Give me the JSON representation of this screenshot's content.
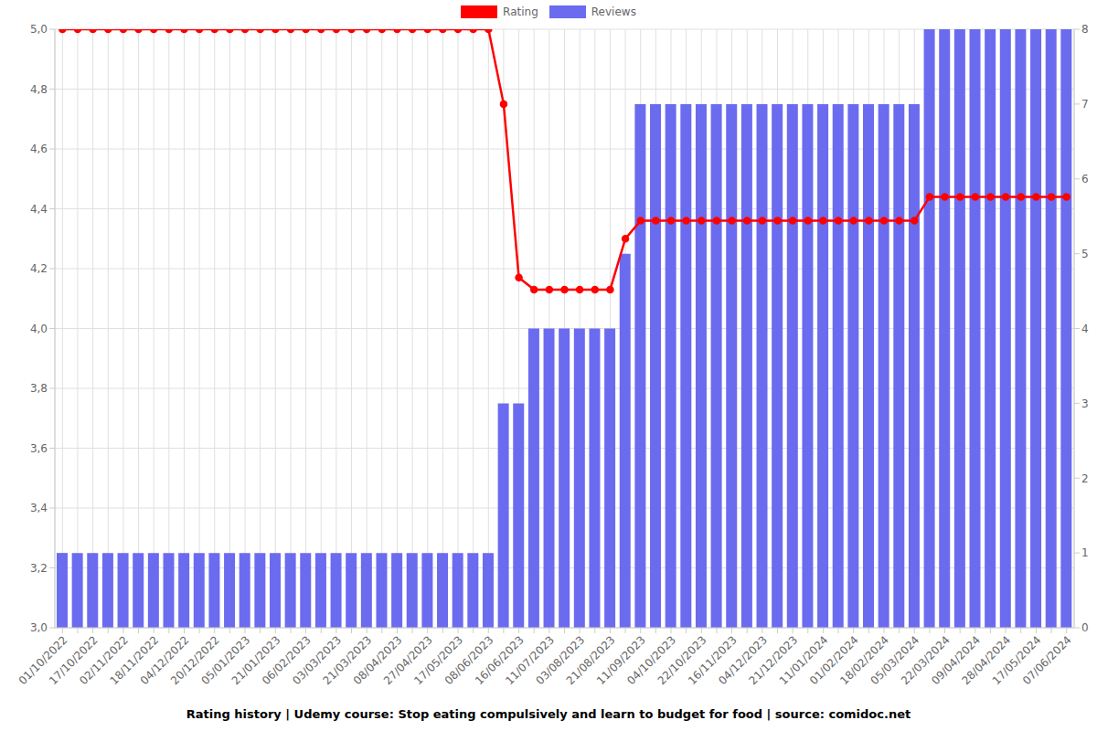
{
  "chart_data": {
    "type": "bar",
    "title": "Rating history | Udemy course: Stop eating compulsively and learn to budget for food | source: comidoc.net",
    "categories": [
      "01/10/2022",
      null,
      "17/10/2022",
      null,
      "02/11/2022",
      null,
      "18/11/2022",
      null,
      "04/12/2022",
      null,
      "20/12/2022",
      null,
      "05/01/2023",
      null,
      "21/01/2023",
      null,
      "06/02/2023",
      null,
      "03/03/2023",
      null,
      "21/03/2023",
      null,
      "08/04/2023",
      null,
      "27/04/2023",
      null,
      "17/05/2023",
      null,
      "08/06/2023",
      null,
      "16/06/2023",
      null,
      "11/07/2023",
      null,
      "03/08/2023",
      null,
      "21/08/2023",
      null,
      "11/09/2023",
      null,
      "04/10/2023",
      null,
      "22/10/2023",
      null,
      "16/11/2023",
      null,
      "04/12/2023",
      null,
      "21/12/2023",
      null,
      "11/01/2024",
      null,
      "01/02/2024",
      null,
      "18/02/2024",
      null,
      "05/03/2024",
      null,
      "22/03/2024",
      null,
      "09/04/2024",
      null,
      "28/04/2024",
      null,
      "17/05/2024",
      null,
      "07/06/2024"
    ],
    "series": [
      {
        "name": "Rating",
        "type": "line",
        "color": "#ff0000",
        "marker": "circle",
        "axis": "y",
        "values": [
          5,
          5,
          5,
          5,
          5,
          5,
          5,
          5,
          5,
          5,
          5,
          5,
          5,
          5,
          5,
          5,
          5,
          5,
          5,
          5,
          5,
          5,
          5,
          5,
          5,
          5,
          5,
          5,
          5,
          4.75,
          4.17,
          4.13,
          4.13,
          4.13,
          4.13,
          4.13,
          4.13,
          4.3,
          4.36,
          4.36,
          4.36,
          4.36,
          4.36,
          4.36,
          4.36,
          4.36,
          4.36,
          4.36,
          4.36,
          4.36,
          4.36,
          4.36,
          4.36,
          4.36,
          4.36,
          4.36,
          4.36,
          4.44,
          4.44,
          4.44,
          4.44,
          4.44,
          4.44,
          4.44,
          4.44,
          4.44,
          4.44
        ]
      },
      {
        "name": "Reviews",
        "type": "bar",
        "color": "#6b6bf0",
        "axis": "y2",
        "values": [
          1,
          1,
          1,
          1,
          1,
          1,
          1,
          1,
          1,
          1,
          1,
          1,
          1,
          1,
          1,
          1,
          1,
          1,
          1,
          1,
          1,
          1,
          1,
          1,
          1,
          1,
          1,
          1,
          1,
          3,
          3,
          4,
          4,
          4,
          4,
          4,
          4,
          5,
          7,
          7,
          7,
          7,
          7,
          7,
          7,
          7,
          7,
          7,
          7,
          7,
          7,
          7,
          7,
          7,
          7,
          7,
          7,
          8,
          8,
          8,
          8,
          8,
          8,
          8,
          8,
          8,
          8
        ]
      }
    ],
    "ylim": [
      3,
      5
    ],
    "yticks": [
      {
        "value": 3,
        "label": "3,0"
      },
      {
        "value": 3.2,
        "label": "3,2"
      },
      {
        "value": 3.4,
        "label": "3,4"
      },
      {
        "value": 3.6,
        "label": "3,6"
      },
      {
        "value": 3.8,
        "label": "3,8"
      },
      {
        "value": 4,
        "label": "4,0"
      },
      {
        "value": 4.2,
        "label": "4,2"
      },
      {
        "value": 4.4,
        "label": "4,4"
      },
      {
        "value": 4.6,
        "label": "4,6"
      },
      {
        "value": 4.8,
        "label": "4,8"
      },
      {
        "value": 5,
        "label": "5,0"
      }
    ],
    "y2lim": [
      0,
      8
    ],
    "y2ticks": [
      0,
      1,
      2,
      3,
      4,
      5,
      6,
      7,
      8
    ],
    "grid": true,
    "legend": "top"
  }
}
